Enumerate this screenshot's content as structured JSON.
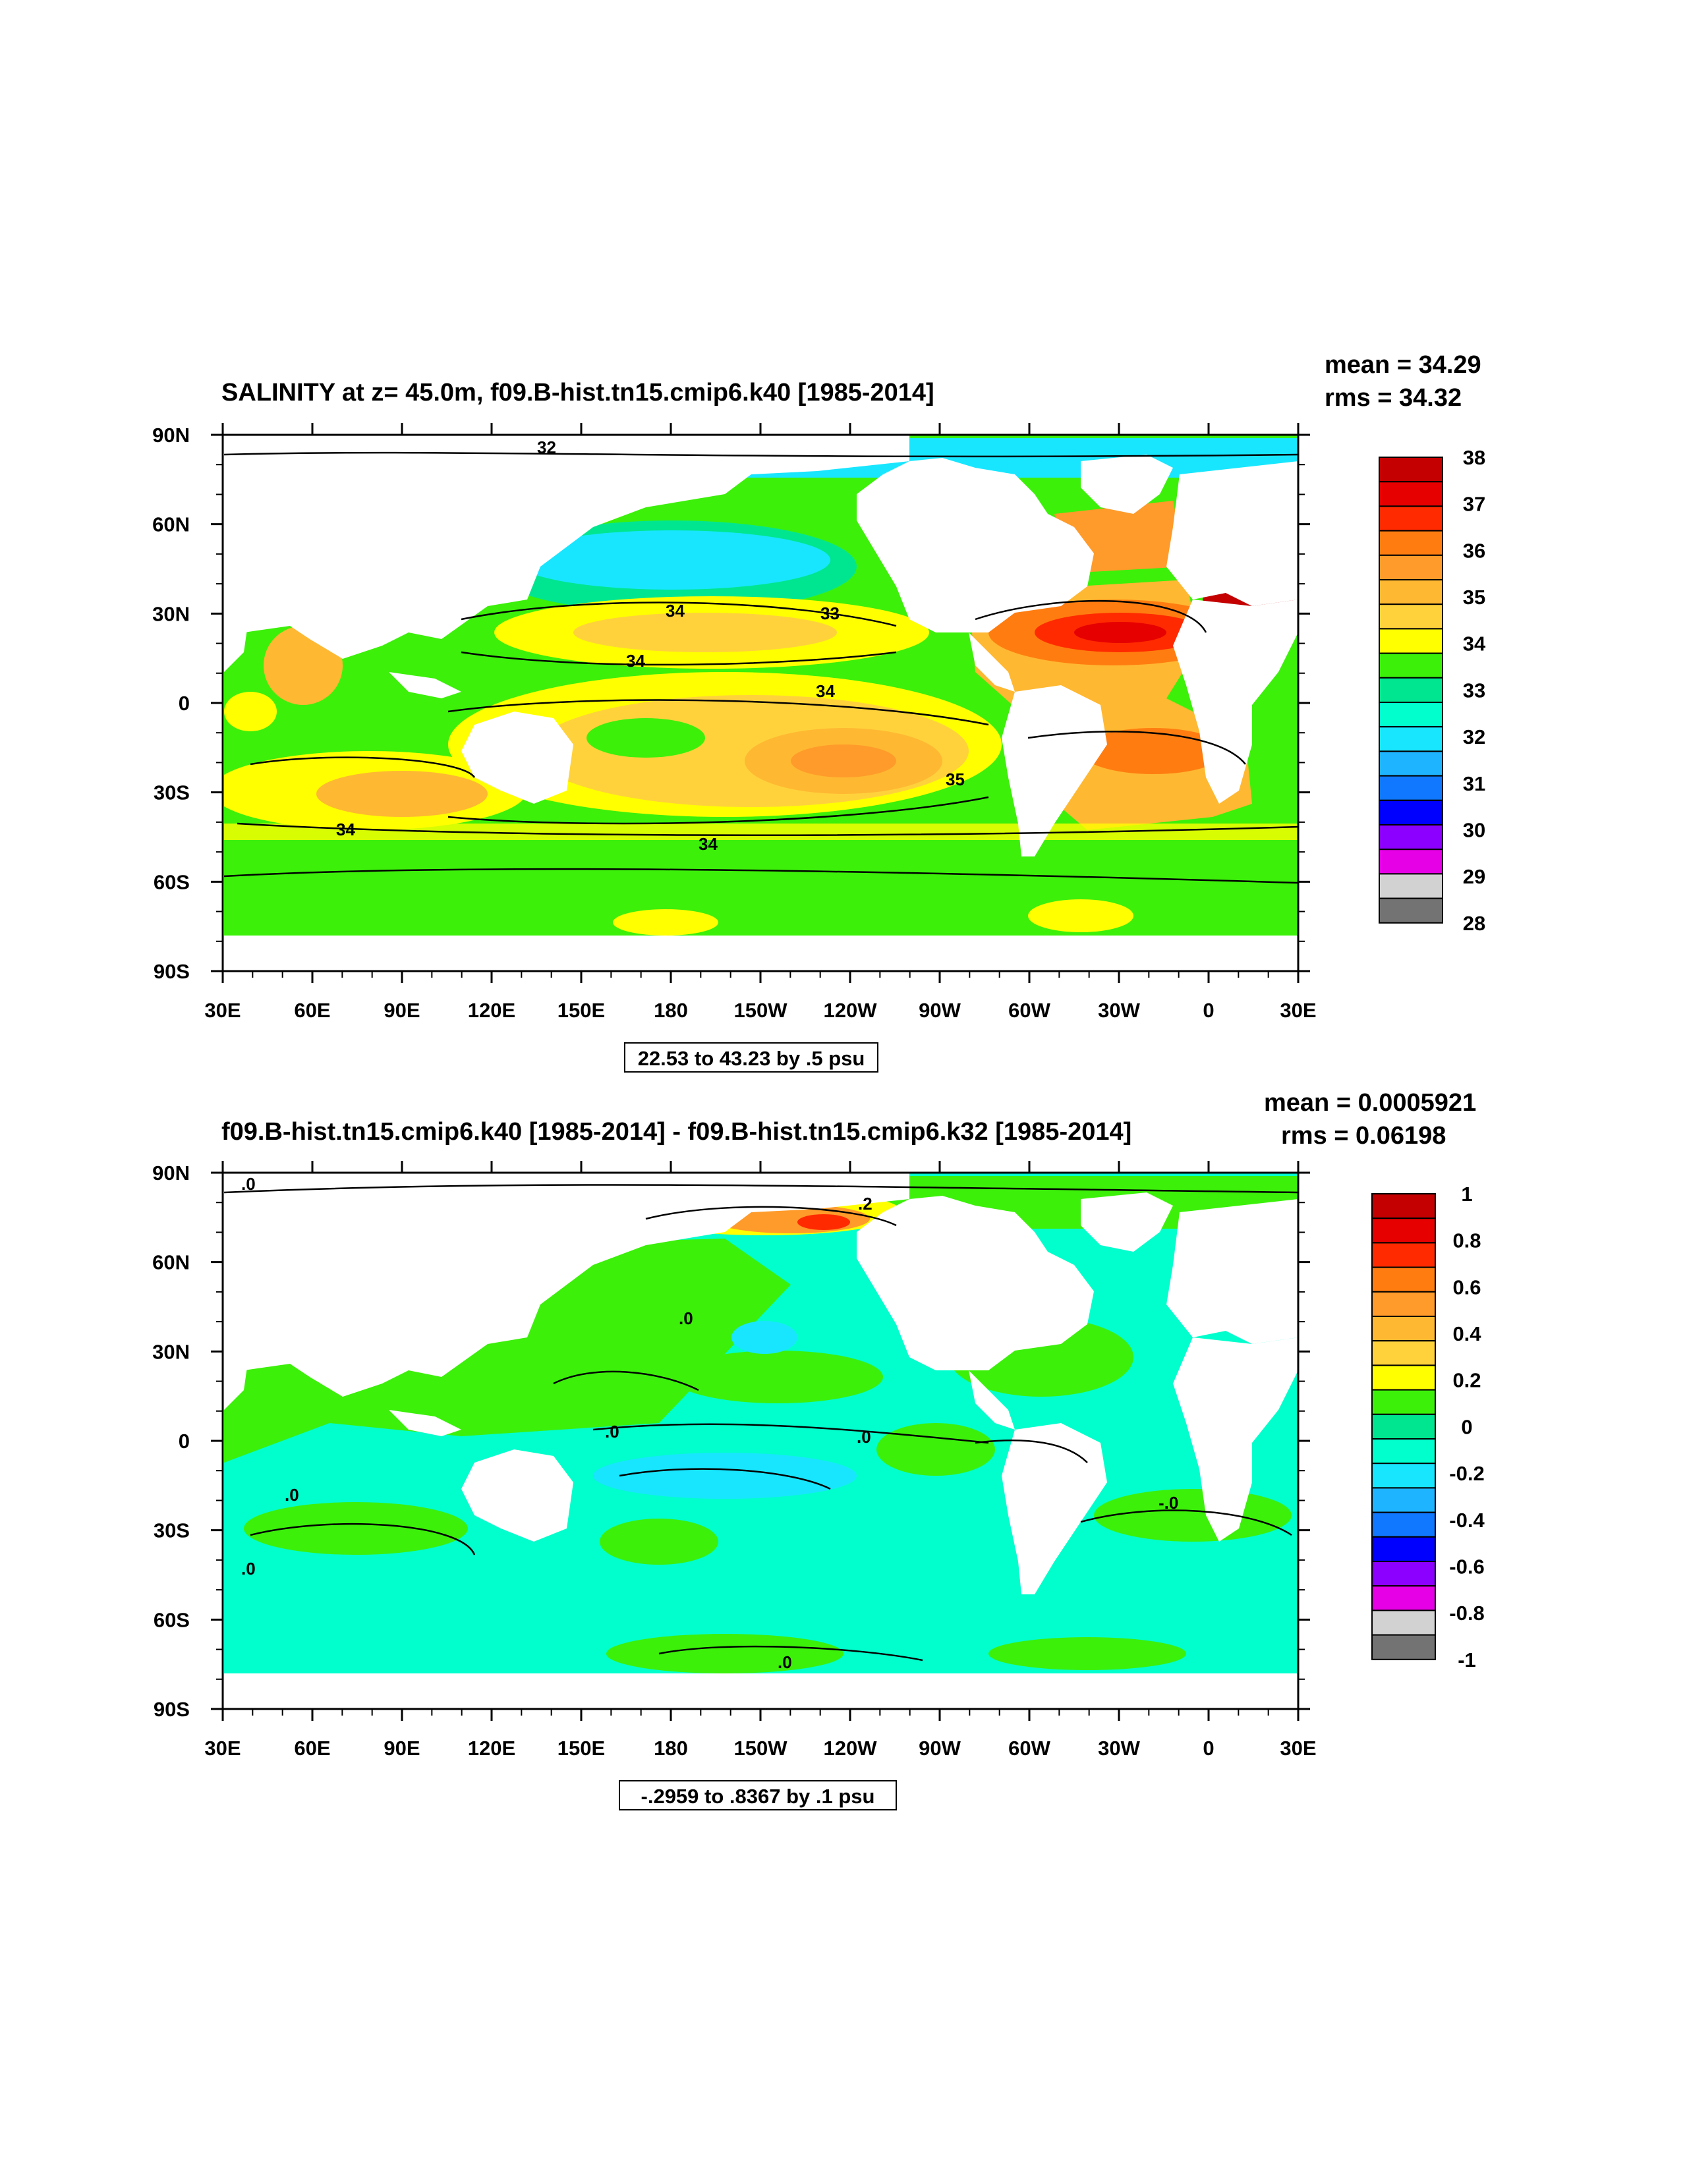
{
  "panels": [
    {
      "id": "salinity",
      "title": "SALINITY at z=  45.0m, f09.B-hist.tn15.cmip6.k40 [1985-2014]",
      "stats": {
        "mean": "mean = 34.29",
        "rms": "rms = 34.32"
      },
      "contour_info": "22.53 to 43.23 by .5 psu",
      "colorbar": {
        "labels": [
          "38",
          "37",
          "36",
          "35",
          "34",
          "33",
          "32",
          "31",
          "30",
          "29",
          "28"
        ],
        "colors": [
          "#c40000",
          "#e60000",
          "#ff2a00",
          "#ff7d10",
          "#ff9b2a",
          "#ffb832",
          "#ffd23c",
          "#ffff00",
          "#3cf00a",
          "#00e690",
          "#00ffcc",
          "#18e6ff",
          "#1fb4ff",
          "#0f78ff",
          "#0000ff",
          "#8c00ff",
          "#e600e6",
          "#d2d2d2",
          "#737373"
        ]
      },
      "contour_labels": [
        "32",
        "34",
        "33",
        "34",
        "34",
        "35",
        "34",
        "34"
      ]
    },
    {
      "id": "difference",
      "title": "f09.B-hist.tn15.cmip6.k40 [1985-2014] - f09.B-hist.tn15.cmip6.k32 [1985-2014]",
      "stats": {
        "mean": "mean = 0.0005921",
        "rms": "rms = 0.06198"
      },
      "contour_info": "-.2959 to .8367 by .1 psu",
      "colorbar": {
        "labels": [
          "1",
          "0.8",
          "0.6",
          "0.4",
          "0.2",
          "0",
          "-0.2",
          "-0.4",
          "-0.6",
          "-0.8",
          "-1"
        ],
        "colors": [
          "#c40000",
          "#e60000",
          "#ff2a00",
          "#ff7d10",
          "#ff9b2a",
          "#ffb832",
          "#ffd23c",
          "#ffff00",
          "#3cf00a",
          "#00e690",
          "#00ffcc",
          "#18e6ff",
          "#1fb4ff",
          "#0f78ff",
          "#0000ff",
          "#8c00ff",
          "#e600e6",
          "#d2d2d2",
          "#737373"
        ]
      },
      "contour_labels": [
        ".0",
        ".2",
        ".0",
        ".0",
        ".0",
        "-.0",
        ".0",
        ".0",
        ".0"
      ]
    }
  ],
  "axes": {
    "x_ticks": [
      "30E",
      "60E",
      "90E",
      "120E",
      "150E",
      "180",
      "150W",
      "120W",
      "90W",
      "60W",
      "30W",
      "0",
      "30E"
    ],
    "y_ticks": [
      "90N",
      "60N",
      "30N",
      "0",
      "30S",
      "60S",
      "90S"
    ]
  }
}
